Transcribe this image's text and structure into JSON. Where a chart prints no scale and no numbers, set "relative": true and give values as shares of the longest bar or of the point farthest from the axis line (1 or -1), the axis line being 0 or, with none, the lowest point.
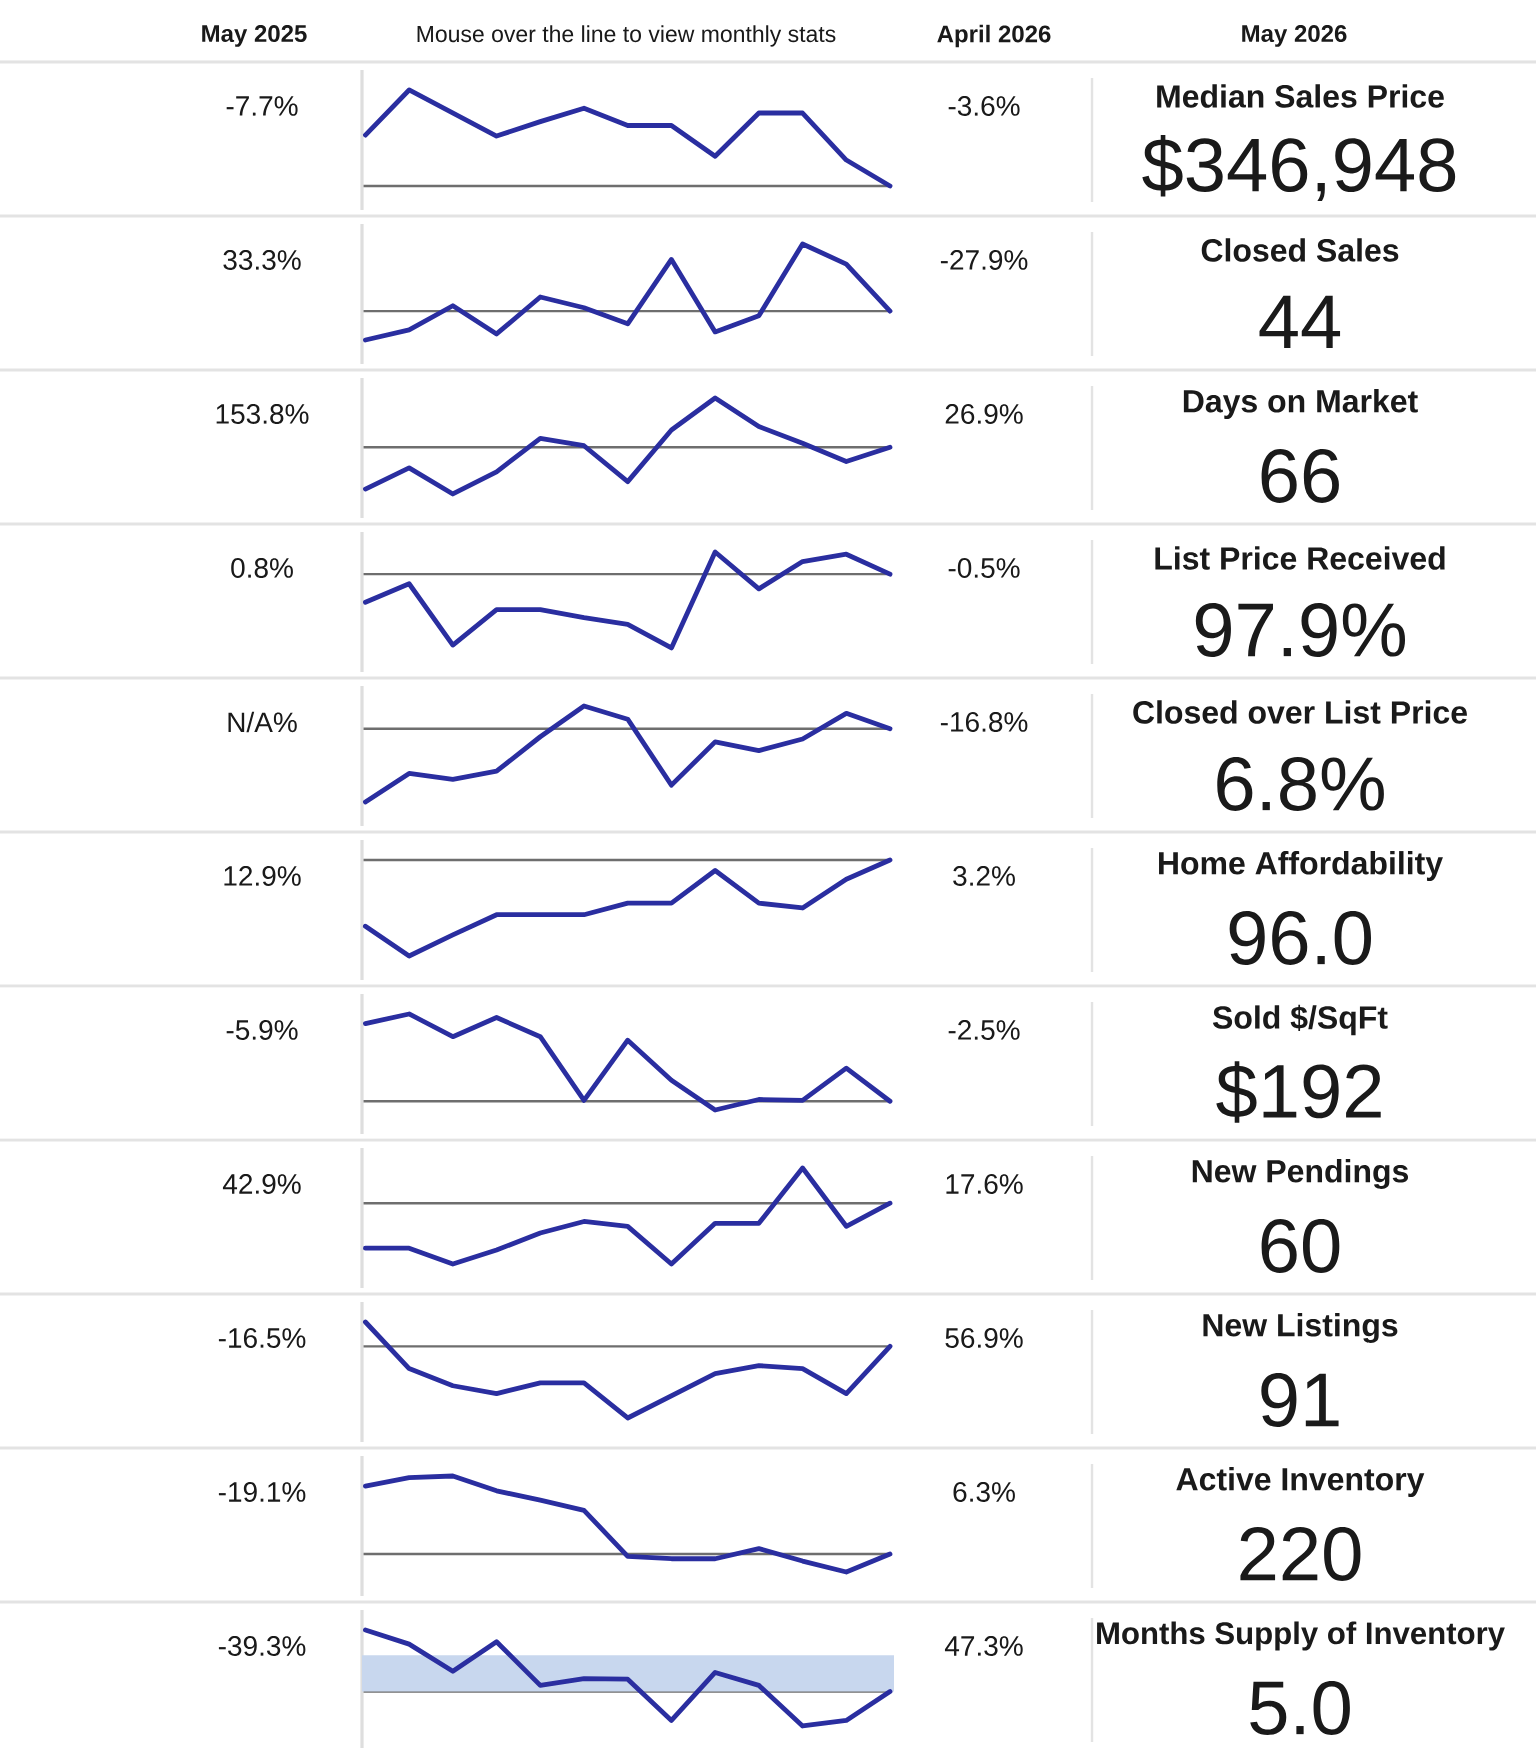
{
  "chart_data": [
    {
      "type": "other",
      "annotations": [
        "May 2025",
        "Mouse over the line to view monthly stats",
        "April 2026",
        "May 2026"
      ]
    },
    {
      "type": "line",
      "relative": true,
      "categories": [
        null,
        null,
        null,
        null,
        null,
        null,
        null,
        null,
        null,
        null,
        null,
        null,
        null
      ],
      "values": [
        0.53,
        1,
        0.76,
        0.52,
        0.67,
        0.81,
        0.63,
        0.63,
        0.31,
        0.76,
        0.76,
        0.27,
        0
      ],
      "color": "#2a2ea0",
      "annotations": [
        "-7.7%",
        "-3.6%",
        "Median Sales Price",
        "$346,948"
      ]
    },
    {
      "type": "line",
      "relative": true,
      "categories": [
        null,
        null,
        null,
        null,
        null,
        null,
        null,
        null,
        null,
        null,
        null,
        null,
        null
      ],
      "values": [
        -0.43,
        -0.28,
        0.08,
        -0.34,
        0.21,
        0.05,
        -0.19,
        0.77,
        -0.31,
        -0.07,
        1,
        0.7,
        0
      ],
      "color": "#2a2ea0",
      "annotations": [
        "33.3%",
        "-27.9%",
        "Closed Sales",
        "44"
      ]
    },
    {
      "type": "line",
      "relative": true,
      "categories": [
        null,
        null,
        null,
        null,
        null,
        null,
        null,
        null,
        null,
        null,
        null,
        null,
        null
      ],
      "values": [
        -0.85,
        -0.42,
        -0.95,
        -0.5,
        0.18,
        0.03,
        -0.7,
        0.35,
        1,
        0.42,
        0.08,
        -0.29,
        0
      ],
      "color": "#2a2ea0",
      "annotations": [
        "153.8%",
        "26.9%",
        "Days on Market",
        "66"
      ]
    },
    {
      "type": "line",
      "relative": true,
      "categories": [
        null,
        null,
        null,
        null,
        null,
        null,
        null,
        null,
        null,
        null,
        null,
        null,
        null
      ],
      "values": [
        -0.38,
        -0.13,
        -0.96,
        -0.48,
        -0.48,
        -0.59,
        -0.68,
        -1,
        0.3,
        -0.2,
        0.17,
        0.27,
        0
      ],
      "color": "#2a2ea0",
      "annotations": [
        "0.8%",
        "-0.5%",
        "List Price Received",
        "97.9%"
      ]
    },
    {
      "type": "line",
      "relative": true,
      "categories": [
        null,
        null,
        null,
        null,
        null,
        null,
        null,
        null,
        null,
        null,
        null,
        null,
        null
      ],
      "values": [
        -1,
        -0.61,
        -0.69,
        -0.58,
        -0.11,
        0.31,
        0.13,
        -0.77,
        -0.18,
        -0.3,
        -0.14,
        0.21,
        0
      ],
      "color": "#2a2ea0",
      "annotations": [
        "N/A%",
        "-16.8%",
        "Closed over List Price",
        "6.8%"
      ]
    },
    {
      "type": "line",
      "relative": true,
      "categories": [
        null,
        null,
        null,
        null,
        null,
        null,
        null,
        null,
        null,
        null,
        null,
        null,
        null
      ],
      "values": [
        -0.69,
        -1,
        -0.78,
        -0.57,
        -0.57,
        -0.57,
        -0.45,
        -0.45,
        -0.11,
        -0.45,
        -0.5,
        -0.2,
        0
      ],
      "color": "#2a2ea0",
      "annotations": [
        "12.9%",
        "3.2%",
        "Home Affordability",
        "96.0"
      ]
    },
    {
      "type": "line",
      "relative": true,
      "categories": [
        null,
        null,
        null,
        null,
        null,
        null,
        null,
        null,
        null,
        null,
        null,
        null,
        null
      ],
      "values": [
        0.89,
        1,
        0.74,
        0.96,
        0.74,
        0.01,
        0.7,
        0.24,
        -0.1,
        0.02,
        0.01,
        0.38,
        0
      ],
      "color": "#2a2ea0",
      "annotations": [
        "-5.9%",
        "-2.5%",
        "Sold $/SqFt",
        "$192"
      ]
    },
    {
      "type": "line",
      "relative": true,
      "categories": [
        null,
        null,
        null,
        null,
        null,
        null,
        null,
        null,
        null,
        null,
        null,
        null,
        null
      ],
      "values": [
        -0.74,
        -0.74,
        -1,
        -0.77,
        -0.49,
        -0.3,
        -0.38,
        -1,
        -0.33,
        -0.33,
        0.58,
        -0.38,
        0
      ],
      "color": "#2a2ea0",
      "annotations": [
        "42.9%",
        "17.6%",
        "New Pendings",
        "60"
      ]
    },
    {
      "type": "line",
      "relative": true,
      "categories": [
        null,
        null,
        null,
        null,
        null,
        null,
        null,
        null,
        null,
        null,
        null,
        null,
        null
      ],
      "values": [
        0.34,
        -0.31,
        -0.55,
        -0.66,
        -0.51,
        -0.51,
        -1,
        -0.69,
        -0.38,
        -0.27,
        -0.31,
        -0.66,
        0
      ],
      "color": "#2a2ea0",
      "annotations": [
        "-16.5%",
        "56.9%",
        "New Listings",
        "91"
      ]
    },
    {
      "type": "line",
      "relative": true,
      "categories": [
        null,
        null,
        null,
        null,
        null,
        null,
        null,
        null,
        null,
        null,
        null,
        null,
        null
      ],
      "values": [
        0.87,
        0.98,
        1,
        0.81,
        0.69,
        0.56,
        -0.03,
        -0.06,
        -0.06,
        0.07,
        -0.09,
        -0.23,
        0
      ],
      "color": "#2a2ea0",
      "annotations": [
        "-19.1%",
        "6.3%",
        "Active Inventory",
        "220"
      ]
    },
    {
      "type": "line",
      "relative": true,
      "categories": [
        null,
        null,
        null,
        null,
        null,
        null,
        null,
        null,
        null,
        null,
        null,
        null,
        null
      ],
      "values": [
        1,
        0.77,
        0.33,
        0.81,
        0.1,
        0.21,
        0.2,
        -0.47,
        0.31,
        0.1,
        -0.56,
        -0.47,
        0
      ],
      "color": "#2a2ea0",
      "bands": [
        {
          "axis": "y",
          "from": 0,
          "to": 0.59,
          "color": "#c8d7ee"
        }
      ],
      "annotations": [
        "-39.3%",
        "47.3%",
        "Months Supply of Inventory",
        "5.0"
      ]
    }
  ]
}
